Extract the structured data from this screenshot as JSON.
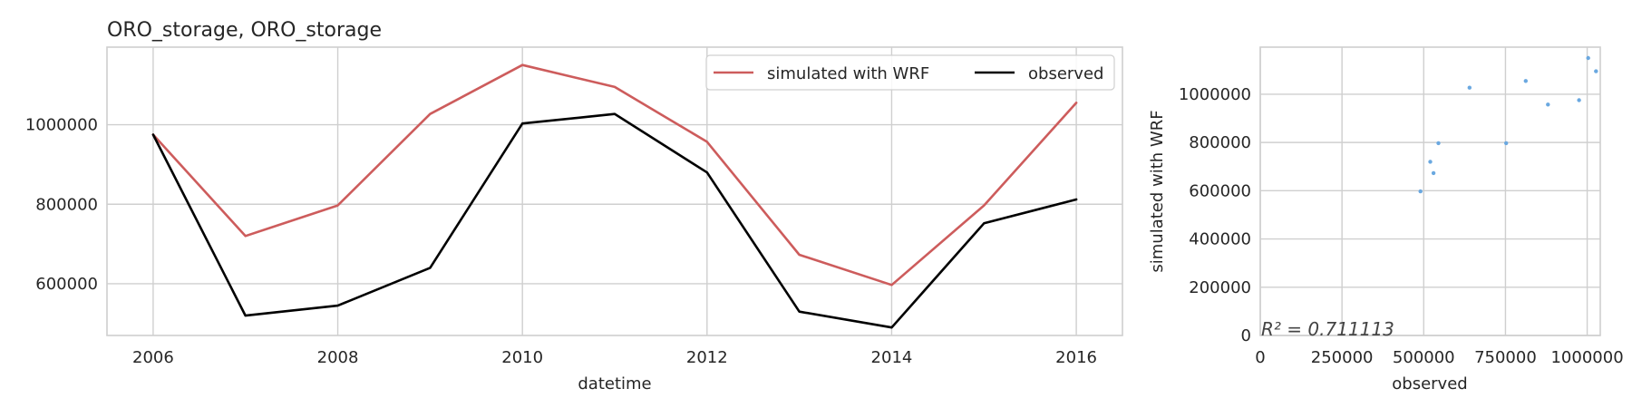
{
  "chart_data": [
    {
      "type": "line",
      "title": "ORO_storage, ORO_storage",
      "xlabel": "datetime",
      "ylabel": "",
      "xlim": [
        2005.5,
        2016.5
      ],
      "ylim": [
        470000,
        1195000
      ],
      "x": [
        2006,
        2007,
        2008,
        2009,
        2010,
        2011,
        2012,
        2013,
        2014,
        2015,
        2016
      ],
      "xticks": [
        2006,
        2008,
        2010,
        2012,
        2014,
        2016
      ],
      "xtick_labels": [
        "2006",
        "2008",
        "2010",
        "2012",
        "2014",
        "2016"
      ],
      "yticks": [
        600000,
        800000,
        1000000
      ],
      "ytick_labels": [
        "600000",
        "800000",
        "1000000"
      ],
      "grid": true,
      "legend_placement": "top-right",
      "series": [
        {
          "name": "simulated with WRF",
          "color": "#cd5c5c",
          "values": [
            975000,
            720000,
            797000,
            1027000,
            1150000,
            1095000,
            957000,
            673000,
            597000,
            797000,
            1055000
          ]
        },
        {
          "name": "observed",
          "color": "#000000",
          "values": [
            975000,
            520000,
            545000,
            640000,
            1003000,
            1027000,
            880000,
            530000,
            490000,
            752000,
            812000
          ]
        }
      ]
    },
    {
      "type": "scatter",
      "title": "",
      "xlabel": "observed",
      "ylabel": "simulated with WRF",
      "xlim": [
        0,
        1040000
      ],
      "ylim": [
        0,
        1195000
      ],
      "xticks": [
        0,
        250000,
        500000,
        750000,
        1000000
      ],
      "xtick_labels": [
        "0",
        "250000",
        "500000",
        "750000",
        "1000000"
      ],
      "yticks": [
        0,
        200000,
        400000,
        600000,
        800000,
        1000000
      ],
      "ytick_labels": [
        "0",
        "200000",
        "400000",
        "600000",
        "800000",
        "1000000"
      ],
      "grid": true,
      "color": "#6aa8e0",
      "annotation": "R² = 0.711113",
      "points": [
        {
          "x": 490000,
          "y": 597000
        },
        {
          "x": 520000,
          "y": 720000
        },
        {
          "x": 530000,
          "y": 673000
        },
        {
          "x": 545000,
          "y": 797000
        },
        {
          "x": 640000,
          "y": 1027000
        },
        {
          "x": 752000,
          "y": 797000
        },
        {
          "x": 812000,
          "y": 1055000
        },
        {
          "x": 880000,
          "y": 957000
        },
        {
          "x": 975000,
          "y": 975000
        },
        {
          "x": 1003000,
          "y": 1150000
        },
        {
          "x": 1027000,
          "y": 1095000
        }
      ]
    }
  ]
}
